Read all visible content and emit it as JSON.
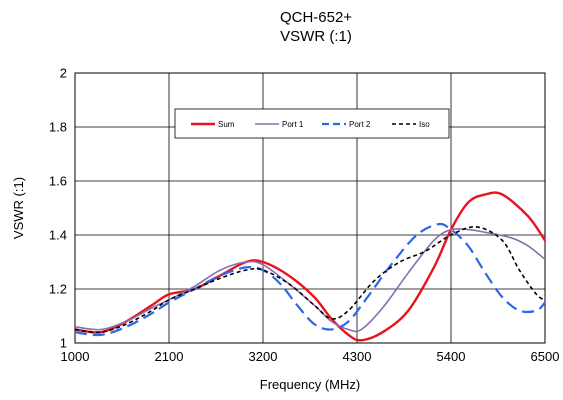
{
  "chart_data": {
    "type": "line",
    "title": "QCH-652+",
    "subtitle": "VSWR (:1)",
    "xlabel": "Frequency (MHz)",
    "ylabel": "VSWR (:1)",
    "xlim": [
      1000,
      6500
    ],
    "ylim": [
      1,
      2
    ],
    "x_ticks": [
      1000,
      2100,
      3200,
      4300,
      5400,
      6500
    ],
    "y_ticks": [
      1,
      1.2,
      1.4,
      1.6,
      1.8,
      2
    ],
    "x_tick_labels": [
      "1000",
      "2100",
      "3200",
      "4300",
      "5400",
      "6500"
    ],
    "y_tick_labels": [
      "1",
      "1.2",
      "1.4",
      "1.6",
      "1.8",
      "2"
    ],
    "grid": true,
    "legend_position": "top-center",
    "series": [
      {
        "name": "Sum",
        "color": "#e8141c",
        "style": "solid",
        "points": [
          [
            1000,
            1.05
          ],
          [
            1300,
            1.04
          ],
          [
            1600,
            1.08
          ],
          [
            1900,
            1.14
          ],
          [
            2100,
            1.18
          ],
          [
            2400,
            1.2
          ],
          [
            2700,
            1.25
          ],
          [
            3000,
            1.3
          ],
          [
            3200,
            1.3
          ],
          [
            3500,
            1.25
          ],
          [
            3800,
            1.17
          ],
          [
            4000,
            1.09
          ],
          [
            4200,
            1.03
          ],
          [
            4350,
            1.01
          ],
          [
            4600,
            1.04
          ],
          [
            4900,
            1.12
          ],
          [
            5200,
            1.28
          ],
          [
            5400,
            1.42
          ],
          [
            5600,
            1.52
          ],
          [
            5800,
            1.55
          ],
          [
            6000,
            1.55
          ],
          [
            6300,
            1.47
          ],
          [
            6500,
            1.38
          ]
        ]
      },
      {
        "name": "Port 1",
        "color": "#8a6eb0",
        "style": "solid",
        "points": [
          [
            1000,
            1.06
          ],
          [
            1300,
            1.05
          ],
          [
            1600,
            1.08
          ],
          [
            1900,
            1.13
          ],
          [
            2100,
            1.16
          ],
          [
            2400,
            1.21
          ],
          [
            2700,
            1.27
          ],
          [
            3000,
            1.3
          ],
          [
            3200,
            1.29
          ],
          [
            3500,
            1.22
          ],
          [
            3800,
            1.14
          ],
          [
            4000,
            1.08
          ],
          [
            4200,
            1.05
          ],
          [
            4350,
            1.05
          ],
          [
            4600,
            1.13
          ],
          [
            4900,
            1.26
          ],
          [
            5200,
            1.38
          ],
          [
            5400,
            1.42
          ],
          [
            5600,
            1.42
          ],
          [
            5800,
            1.41
          ],
          [
            6100,
            1.39
          ],
          [
            6300,
            1.36
          ],
          [
            6500,
            1.31
          ]
        ]
      },
      {
        "name": "Port 2",
        "color": "#2e66e8",
        "style": "dash",
        "points": [
          [
            1000,
            1.04
          ],
          [
            1300,
            1.03
          ],
          [
            1600,
            1.06
          ],
          [
            1900,
            1.11
          ],
          [
            2100,
            1.15
          ],
          [
            2400,
            1.2
          ],
          [
            2700,
            1.25
          ],
          [
            3000,
            1.28
          ],
          [
            3200,
            1.27
          ],
          [
            3400,
            1.22
          ],
          [
            3600,
            1.14
          ],
          [
            3800,
            1.07
          ],
          [
            4000,
            1.05
          ],
          [
            4200,
            1.08
          ],
          [
            4400,
            1.16
          ],
          [
            4700,
            1.29
          ],
          [
            5000,
            1.4
          ],
          [
            5250,
            1.44
          ],
          [
            5400,
            1.42
          ],
          [
            5600,
            1.36
          ],
          [
            5800,
            1.26
          ],
          [
            6000,
            1.17
          ],
          [
            6200,
            1.12
          ],
          [
            6400,
            1.12
          ],
          [
            6500,
            1.15
          ]
        ]
      },
      {
        "name": "Iso",
        "color": "#000000",
        "style": "dot",
        "points": [
          [
            1000,
            1.05
          ],
          [
            1300,
            1.04
          ],
          [
            1600,
            1.07
          ],
          [
            1900,
            1.12
          ],
          [
            2100,
            1.16
          ],
          [
            2400,
            1.2
          ],
          [
            2700,
            1.24
          ],
          [
            3000,
            1.27
          ],
          [
            3200,
            1.27
          ],
          [
            3500,
            1.22
          ],
          [
            3800,
            1.14
          ],
          [
            4000,
            1.09
          ],
          [
            4200,
            1.12
          ],
          [
            4500,
            1.23
          ],
          [
            4800,
            1.3
          ],
          [
            5100,
            1.34
          ],
          [
            5400,
            1.4
          ],
          [
            5700,
            1.43
          ],
          [
            6000,
            1.38
          ],
          [
            6200,
            1.27
          ],
          [
            6400,
            1.18
          ],
          [
            6500,
            1.16
          ]
        ]
      }
    ]
  }
}
